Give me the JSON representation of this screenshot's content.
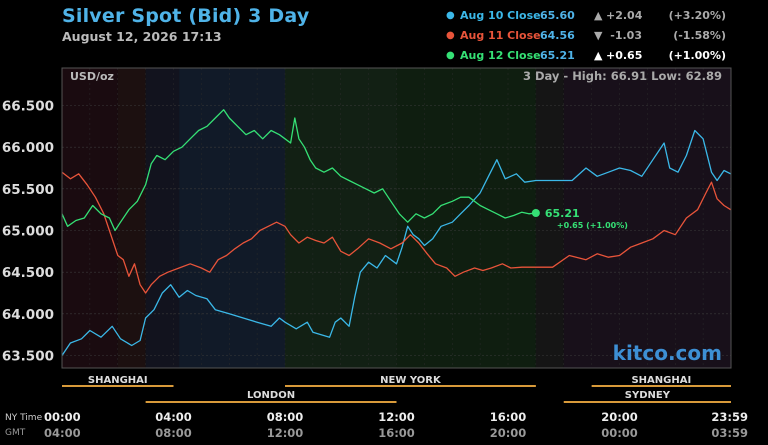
{
  "header": {
    "title": "Silver Spot (Bid) 3 Day",
    "datetime": "August 12, 2026 17:13"
  },
  "legend": [
    {
      "label": "Aug 10 Close",
      "value": "65.60",
      "arrow": "▲",
      "change": "+2.04",
      "pct": "(+3.20%)",
      "color": "#3bb8e8",
      "highlight": false
    },
    {
      "label": "Aug 11 Close",
      "value": "64.56",
      "arrow": "▼",
      "change": "-1.03",
      "pct": "(-1.58%)",
      "color": "#e8543a",
      "highlight": false
    },
    {
      "label": "Aug 12 Close",
      "value": "65.21",
      "arrow": "▲",
      "change": "+0.65",
      "pct": "(+1.00%)",
      "color": "#35e075",
      "highlight": true
    }
  ],
  "plot": {
    "unit_label": "USD/oz",
    "range_text": "3 Day - High: 66.91  Low: 62.89",
    "watermark": "kitco.com",
    "current_value": "65.21",
    "current_change": "+0.65 (+1.00%)"
  },
  "axes": {
    "tz_label_ny": "NY Time",
    "tz_label_gmt": "GMT",
    "ny_ticks": [
      "00:00",
      "04:00",
      "08:00",
      "12:00",
      "16:00",
      "20:00",
      "23:59"
    ],
    "gmt_ticks": [
      "04:00",
      "08:00",
      "12:00",
      "16:00",
      "20:00",
      "00:00",
      "03:59"
    ]
  },
  "sessions": [
    {
      "name": "SHANGHAI",
      "row": 1,
      "start_h": 0,
      "end_h": 4
    },
    {
      "name": "NEW YORK",
      "row": 1,
      "start_h": 8,
      "end_h": 17
    },
    {
      "name": "SHANGHAI",
      "row": 1,
      "start_h": 19,
      "end_h": 24
    },
    {
      "name": "LONDON",
      "row": 2,
      "start_h": 3,
      "end_h": 12
    },
    {
      "name": "SYDNEY",
      "row": 2,
      "start_h": 18,
      "end_h": 24
    }
  ],
  "chart_data": {
    "type": "line",
    "title": "Silver Spot (Bid) 3 Day",
    "ylabel": "USD/oz",
    "xlabel": "",
    "x_unit": "NY Time hours",
    "xlim": [
      0,
      24
    ],
    "ylim": [
      63.35,
      66.95
    ],
    "yticks": [
      63.5,
      64.0,
      64.5,
      65.0,
      65.5,
      66.0,
      66.5
    ],
    "ytick_labels": [
      "63.500",
      "64.000",
      "64.500",
      "65.000",
      "65.500",
      "66.000",
      "66.500"
    ],
    "legend_position": "top-right",
    "grid": true,
    "series": [
      {
        "name": "Aug 10 Close",
        "color": "#3bb8e8",
        "points": [
          [
            0,
            63.5
          ],
          [
            0.3,
            63.65
          ],
          [
            0.7,
            63.7
          ],
          [
            1.0,
            63.8
          ],
          [
            1.4,
            63.72
          ],
          [
            1.8,
            63.85
          ],
          [
            2.1,
            63.7
          ],
          [
            2.5,
            63.62
          ],
          [
            2.8,
            63.68
          ],
          [
            3.0,
            63.95
          ],
          [
            3.3,
            64.05
          ],
          [
            3.6,
            64.25
          ],
          [
            3.9,
            64.35
          ],
          [
            4.2,
            64.2
          ],
          [
            4.5,
            64.28
          ],
          [
            4.8,
            64.22
          ],
          [
            5.2,
            64.18
          ],
          [
            5.5,
            64.05
          ],
          [
            6.0,
            64.0
          ],
          [
            6.5,
            63.95
          ],
          [
            7.0,
            63.9
          ],
          [
            7.5,
            63.85
          ],
          [
            7.8,
            63.95
          ],
          [
            8.0,
            63.9
          ],
          [
            8.4,
            63.82
          ],
          [
            8.8,
            63.9
          ],
          [
            9.0,
            63.78
          ],
          [
            9.3,
            63.75
          ],
          [
            9.6,
            63.72
          ],
          [
            9.8,
            63.9
          ],
          [
            10.0,
            63.95
          ],
          [
            10.3,
            63.85
          ],
          [
            10.5,
            64.2
          ],
          [
            10.7,
            64.5
          ],
          [
            11.0,
            64.62
          ],
          [
            11.3,
            64.55
          ],
          [
            11.6,
            64.7
          ],
          [
            12.0,
            64.6
          ],
          [
            12.2,
            64.8
          ],
          [
            12.4,
            65.05
          ],
          [
            12.6,
            64.95
          ],
          [
            12.8,
            64.9
          ],
          [
            13.0,
            64.82
          ],
          [
            13.3,
            64.9
          ],
          [
            13.6,
            65.05
          ],
          [
            14.0,
            65.1
          ],
          [
            14.3,
            65.2
          ],
          [
            14.6,
            65.3
          ],
          [
            15.0,
            65.45
          ],
          [
            15.3,
            65.65
          ],
          [
            15.6,
            65.85
          ],
          [
            15.9,
            65.62
          ],
          [
            16.3,
            65.68
          ],
          [
            16.6,
            65.58
          ],
          [
            17.0,
            65.6
          ],
          [
            17.6,
            65.6
          ],
          [
            18.3,
            65.6
          ],
          [
            18.8,
            65.75
          ],
          [
            19.2,
            65.65
          ],
          [
            19.6,
            65.7
          ],
          [
            20.0,
            65.75
          ],
          [
            20.4,
            65.72
          ],
          [
            20.8,
            65.65
          ],
          [
            21.2,
            65.85
          ],
          [
            21.6,
            66.05
          ],
          [
            21.8,
            65.75
          ],
          [
            22.1,
            65.7
          ],
          [
            22.4,
            65.9
          ],
          [
            22.7,
            66.2
          ],
          [
            23.0,
            66.1
          ],
          [
            23.3,
            65.7
          ],
          [
            23.5,
            65.6
          ],
          [
            23.75,
            65.72
          ],
          [
            23.99,
            65.68
          ]
        ]
      },
      {
        "name": "Aug 11 Close",
        "color": "#e8543a",
        "points": [
          [
            0,
            65.7
          ],
          [
            0.3,
            65.62
          ],
          [
            0.6,
            65.68
          ],
          [
            0.9,
            65.55
          ],
          [
            1.2,
            65.4
          ],
          [
            1.5,
            65.2
          ],
          [
            1.7,
            65.0
          ],
          [
            2.0,
            64.7
          ],
          [
            2.2,
            64.65
          ],
          [
            2.4,
            64.45
          ],
          [
            2.6,
            64.6
          ],
          [
            2.8,
            64.35
          ],
          [
            3.0,
            64.25
          ],
          [
            3.2,
            64.35
          ],
          [
            3.5,
            64.45
          ],
          [
            3.8,
            64.5
          ],
          [
            4.2,
            64.55
          ],
          [
            4.6,
            64.6
          ],
          [
            5.0,
            64.55
          ],
          [
            5.3,
            64.5
          ],
          [
            5.6,
            64.65
          ],
          [
            5.9,
            64.7
          ],
          [
            6.2,
            64.78
          ],
          [
            6.5,
            64.85
          ],
          [
            6.8,
            64.9
          ],
          [
            7.1,
            65.0
          ],
          [
            7.4,
            65.05
          ],
          [
            7.7,
            65.1
          ],
          [
            8.0,
            65.05
          ],
          [
            8.2,
            64.95
          ],
          [
            8.5,
            64.85
          ],
          [
            8.8,
            64.92
          ],
          [
            9.1,
            64.88
          ],
          [
            9.4,
            64.85
          ],
          [
            9.7,
            64.92
          ],
          [
            10.0,
            64.75
          ],
          [
            10.3,
            64.7
          ],
          [
            10.6,
            64.78
          ],
          [
            11.0,
            64.9
          ],
          [
            11.4,
            64.85
          ],
          [
            11.8,
            64.78
          ],
          [
            12.2,
            64.85
          ],
          [
            12.5,
            64.95
          ],
          [
            12.8,
            64.85
          ],
          [
            13.1,
            64.72
          ],
          [
            13.4,
            64.6
          ],
          [
            13.8,
            64.55
          ],
          [
            14.1,
            64.45
          ],
          [
            14.4,
            64.5
          ],
          [
            14.8,
            64.55
          ],
          [
            15.1,
            64.52
          ],
          [
            15.4,
            64.55
          ],
          [
            15.8,
            64.6
          ],
          [
            16.1,
            64.55
          ],
          [
            16.5,
            64.56
          ],
          [
            17.0,
            64.56
          ],
          [
            17.6,
            64.56
          ],
          [
            18.2,
            64.7
          ],
          [
            18.8,
            64.65
          ],
          [
            19.2,
            64.72
          ],
          [
            19.6,
            64.68
          ],
          [
            20.0,
            64.7
          ],
          [
            20.4,
            64.8
          ],
          [
            20.8,
            64.85
          ],
          [
            21.2,
            64.9
          ],
          [
            21.6,
            65.0
          ],
          [
            22.0,
            64.95
          ],
          [
            22.4,
            65.15
          ],
          [
            22.8,
            65.25
          ],
          [
            23.1,
            65.45
          ],
          [
            23.3,
            65.58
          ],
          [
            23.5,
            65.38
          ],
          [
            23.75,
            65.3
          ],
          [
            23.99,
            65.25
          ]
        ]
      },
      {
        "name": "Aug 12 Close",
        "color": "#35e075",
        "points": [
          [
            0,
            65.2
          ],
          [
            0.2,
            65.05
          ],
          [
            0.5,
            65.12
          ],
          [
            0.8,
            65.15
          ],
          [
            1.1,
            65.3
          ],
          [
            1.4,
            65.2
          ],
          [
            1.7,
            65.15
          ],
          [
            1.9,
            65.0
          ],
          [
            2.1,
            65.1
          ],
          [
            2.4,
            65.25
          ],
          [
            2.7,
            65.35
          ],
          [
            3.0,
            65.55
          ],
          [
            3.2,
            65.8
          ],
          [
            3.4,
            65.9
          ],
          [
            3.7,
            65.85
          ],
          [
            4.0,
            65.95
          ],
          [
            4.3,
            66.0
          ],
          [
            4.6,
            66.1
          ],
          [
            4.9,
            66.2
          ],
          [
            5.2,
            66.25
          ],
          [
            5.5,
            66.35
          ],
          [
            5.8,
            66.45
          ],
          [
            6.0,
            66.35
          ],
          [
            6.3,
            66.25
          ],
          [
            6.6,
            66.15
          ],
          [
            6.9,
            66.2
          ],
          [
            7.2,
            66.1
          ],
          [
            7.5,
            66.2
          ],
          [
            7.8,
            66.15
          ],
          [
            8.0,
            66.1
          ],
          [
            8.2,
            66.05
          ],
          [
            8.35,
            66.35
          ],
          [
            8.5,
            66.1
          ],
          [
            8.7,
            66.0
          ],
          [
            8.9,
            65.85
          ],
          [
            9.1,
            65.75
          ],
          [
            9.4,
            65.7
          ],
          [
            9.7,
            65.75
          ],
          [
            10.0,
            65.65
          ],
          [
            10.3,
            65.6
          ],
          [
            10.6,
            65.55
          ],
          [
            10.9,
            65.5
          ],
          [
            11.2,
            65.45
          ],
          [
            11.5,
            65.5
          ],
          [
            11.8,
            65.35
          ],
          [
            12.1,
            65.2
          ],
          [
            12.4,
            65.1
          ],
          [
            12.7,
            65.2
          ],
          [
            13.0,
            65.15
          ],
          [
            13.3,
            65.2
          ],
          [
            13.6,
            65.3
          ],
          [
            14.0,
            65.35
          ],
          [
            14.3,
            65.4
          ],
          [
            14.6,
            65.4
          ],
          [
            15.0,
            65.3
          ],
          [
            15.3,
            65.25
          ],
          [
            15.6,
            65.2
          ],
          [
            15.9,
            65.15
          ],
          [
            16.2,
            65.18
          ],
          [
            16.5,
            65.22
          ],
          [
            16.75,
            65.2
          ],
          [
            17.0,
            65.21
          ]
        ]
      }
    ]
  }
}
